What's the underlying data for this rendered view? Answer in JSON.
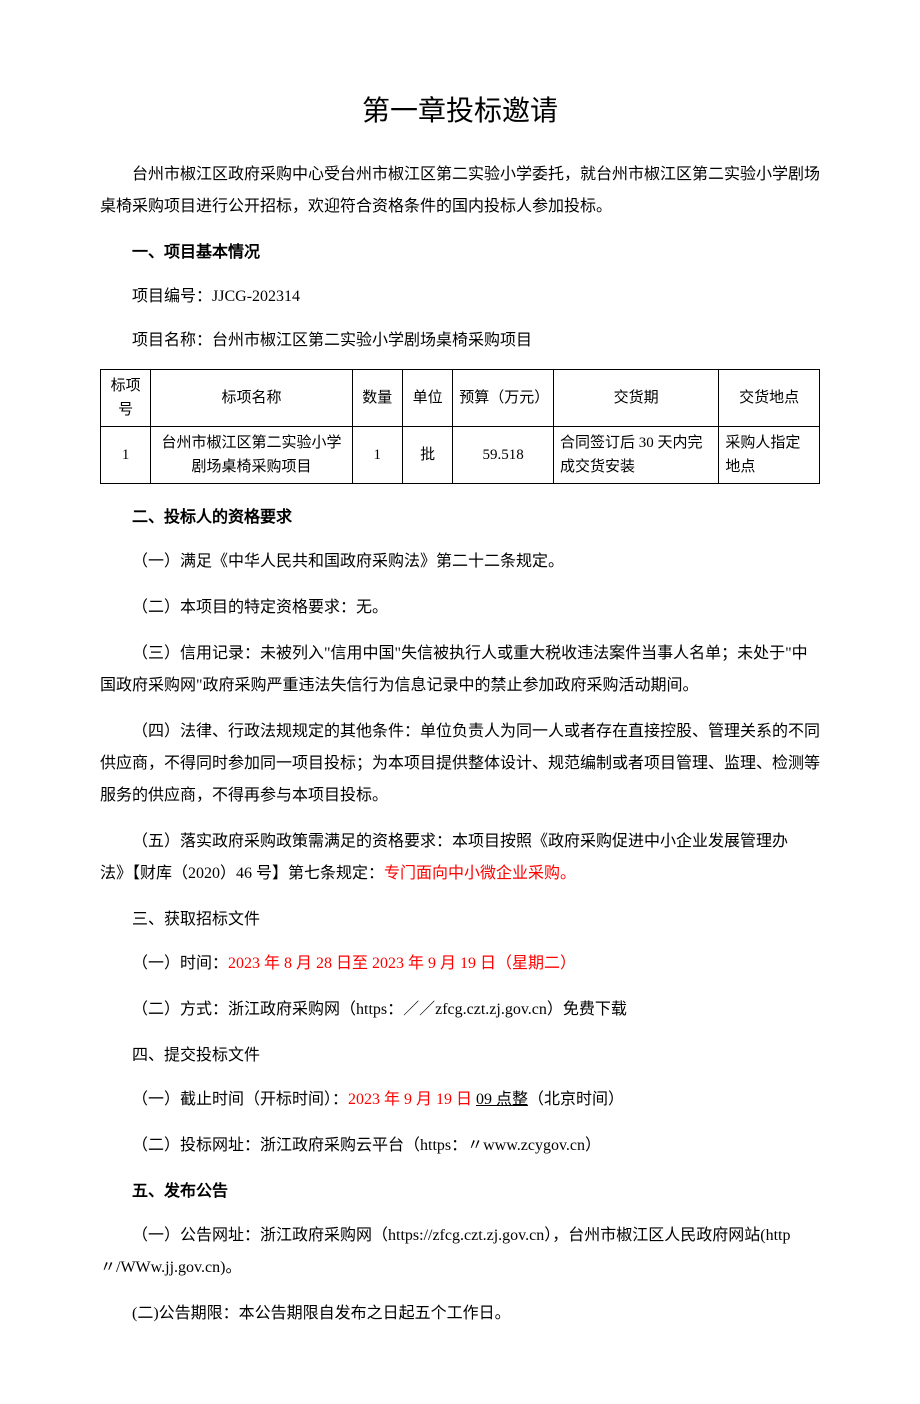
{
  "title": "第一章投标邀请",
  "intro": "台州市椒江区政府采购中心受台州市椒江区第二实验小学委托，就台州市椒江区第二实验小学剧场桌椅采购项目进行公开招标，欢迎符合资格条件的国内投标人参加投标。",
  "section1": {
    "header": "一、项目基本情况",
    "project_no_label": "项目编号：",
    "project_no": "JJCG-202314",
    "project_name_label": "项目名称：台州市椒江区第二实验小学剧场桌椅采购项目"
  },
  "table": {
    "headers": [
      "标项号",
      "标项名称",
      "数量",
      "单位",
      "预算（万元）",
      "交货期",
      "交货地点"
    ],
    "rows": [
      {
        "no": "1",
        "name": "台州市椒江区第二实验小学剧场桌椅采购项目",
        "qty": "1",
        "unit": "批",
        "budget": "59.518",
        "delivery": "合同签订后 30 天内完成交货安装",
        "location": "采购人指定地点"
      }
    ]
  },
  "section2": {
    "header": "二、投标人的资格要求",
    "item1": "（一）满足《中华人民共和国政府采购法》第二十二条规定。",
    "item2": "（二）本项目的特定资格要求：无。",
    "item3": "（三）信用记录：未被列入\"信用中国\"失信被执行人或重大税收违法案件当事人名单；未处于\"中国政府采购网\"政府采购严重违法失信行为信息记录中的禁止参加政府采购活动期间。",
    "item4": "（四）法律、行政法规规定的其他条件：单位负责人为同一人或者存在直接控股、管理关系的不同供应商，不得同时参加同一项目投标；为本项目提供整体设计、规范编制或者项目管理、监理、检测等服务的供应商，不得再参与本项目投标。",
    "item5_prefix": "（五）落实政府采购政策需满足的资格要求：本项目按照《政府采购促进中小企业发展管理办法》【财库（2020）46 号】第七条规定：",
    "item5_red": "专门面向中小微企业采购。"
  },
  "section3": {
    "header": "三、获取招标文件",
    "item1_prefix": "（一）时间：",
    "item1_red": "2023 年 8 月 28 日至 2023 年 9 月 19 日（星期二）",
    "item2": "（二）方式：浙江政府采购网（https：／／zfcg.czt.zj.gov.cn）免费下载"
  },
  "section4": {
    "header": "四、提交投标文件",
    "item1_prefix": "（一）截止时间（开标时间）：",
    "item1_red": "2023 年 9 月 19 日 ",
    "item1_underline": "09 点整",
    "item1_suffix": "（北京时间）",
    "item2": "（二）投标网址：浙江政府采购云平台（https：〃www.zcygov.cn）"
  },
  "section5": {
    "header": "五、发布公告",
    "item1": "（一）公告网址：浙江政府采购网（https://zfcg.czt.zj.gov.cn），台州市椒江区人民政府网站(http〃/WWw.jj.gov.cn)。",
    "item2": "(二)公告期限：本公告期限自发布之日起五个工作日。"
  },
  "colors": {
    "text": "#000000",
    "red": "#ff0000",
    "background": "#ffffff",
    "border": "#000000"
  },
  "typography": {
    "body_fontsize": 16,
    "title_fontsize": 28,
    "table_fontsize": 15,
    "font_family": "SimSun"
  }
}
